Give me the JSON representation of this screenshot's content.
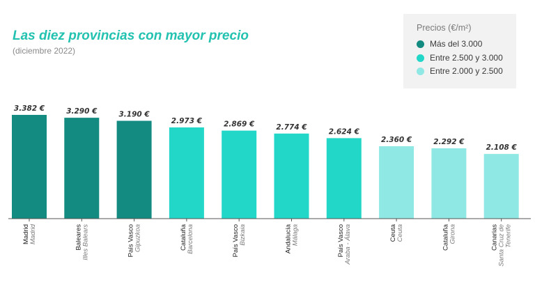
{
  "header": {
    "title": "Las diez provincias con mayor precio",
    "subtitle": "(diciembre 2022)"
  },
  "legend": {
    "title": "Precios (€/m²)",
    "items": [
      {
        "label": "Más del 3.000",
        "color": "#138b80"
      },
      {
        "label": "Entre 2.500 y 3.000",
        "color": "#22d7c7"
      },
      {
        "label": "Entre 2.000 y 2.500",
        "color": "#8fe8e3"
      }
    ]
  },
  "chart_data": {
    "type": "bar",
    "title": "Las diez provincias con mayor precio",
    "subtitle": "(diciembre 2022)",
    "xlabel": "",
    "ylabel": "",
    "ylim": [
      0,
      3382
    ],
    "grid": false,
    "legend_position": "top-right",
    "categories": [
      {
        "region": "Madrid",
        "province": [
          "Madrid"
        ]
      },
      {
        "region": "Baleares",
        "province": [
          "Illes Balears"
        ]
      },
      {
        "region": "País Vasco",
        "province": [
          "Gipuzkoa"
        ]
      },
      {
        "region": "Cataluña",
        "province": [
          "Barcelona"
        ]
      },
      {
        "region": "País Vasco",
        "province": [
          "Bizkaia"
        ]
      },
      {
        "region": "Andalucía",
        "province": [
          "Málaga"
        ]
      },
      {
        "region": "País Vasco",
        "province": [
          "Araba - Álava"
        ]
      },
      {
        "region": "Ceuta",
        "province": [
          "Ceuta"
        ]
      },
      {
        "region": "Cataluña",
        "province": [
          "Girona"
        ]
      },
      {
        "region": "Canarias",
        "province": [
          "Santa Cruz de",
          "Tenerife"
        ]
      }
    ],
    "values": [
      3382,
      3290,
      3190,
      2973,
      2869,
      2774,
      2624,
      2360,
      2292,
      2108
    ],
    "value_labels": [
      "3.382 €",
      "3.290 €",
      "3.190 €",
      "2.973 €",
      "2.869 €",
      "2.774 €",
      "2.624 €",
      "2.360 €",
      "2.292 €",
      "2.108 €"
    ],
    "price_band": [
      0,
      0,
      0,
      1,
      1,
      1,
      1,
      2,
      2,
      2
    ]
  }
}
